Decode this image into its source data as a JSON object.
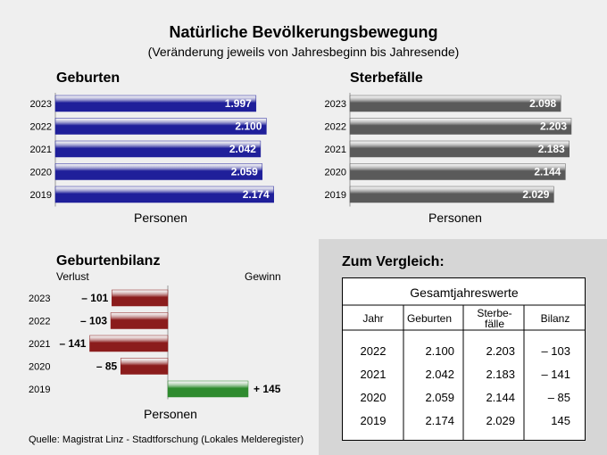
{
  "title": "Natürliche Bevölkerungsbewegung",
  "subtitle": "(Veränderung jeweils von Jahresbeginn bis Jahresende)",
  "colors": {
    "births": "#1f1f9a",
    "deaths": "#5a5a5a",
    "loss": "#8b1c1c",
    "gain": "#2e8b2e"
  },
  "chart_data": [
    {
      "type": "bar",
      "orientation": "horizontal",
      "title": "Geburten",
      "xlabel": "Personen",
      "categories": [
        "2023",
        "2022",
        "2021",
        "2020",
        "2019"
      ],
      "values": [
        1997,
        2100,
        2042,
        2059,
        2174
      ],
      "value_labels": [
        "1.997",
        "2.100",
        "2.042",
        "2.059",
        "2.174"
      ],
      "xlim": [
        0,
        2203
      ]
    },
    {
      "type": "bar",
      "orientation": "horizontal",
      "title": "Sterbefälle",
      "xlabel": "Personen",
      "categories": [
        "2023",
        "2022",
        "2021",
        "2020",
        "2019"
      ],
      "values": [
        2098,
        2203,
        2183,
        2144,
        2029
      ],
      "value_labels": [
        "2.098",
        "2.203",
        "2.183",
        "2.144",
        "2.029"
      ],
      "xlim": [
        0,
        2203
      ]
    },
    {
      "type": "bar",
      "orientation": "horizontal",
      "title": "Geburtenbilanz",
      "xlabel": "Personen",
      "left_label": "Verlust",
      "right_label": "Gewinn",
      "categories": [
        "2023",
        "2022",
        "2021",
        "2020",
        "2019"
      ],
      "values": [
        -101,
        -103,
        -141,
        -85,
        145
      ],
      "value_labels": [
        "– 101",
        "– 103",
        "– 141",
        "– 85",
        "+ 145"
      ],
      "xlim": [
        -145,
        145
      ]
    },
    {
      "type": "table",
      "heading": "Zum Vergleich:",
      "title": "Gesamtjahreswerte",
      "columns": [
        "Jahr",
        "Geburten",
        "Sterbe-\nfälle",
        "Bilanz"
      ],
      "rows": [
        [
          "2022",
          "2.100",
          "2.203",
          "– 103"
        ],
        [
          "2021",
          "2.042",
          "2.183",
          "– 141"
        ],
        [
          "2020",
          "2.059",
          "2.144",
          "– 85"
        ],
        [
          "2019",
          "2.174",
          "2.029",
          "145"
        ]
      ]
    }
  ],
  "source": "Quelle: Magistrat Linz - Stadtforschung (Lokales Melderegister)"
}
